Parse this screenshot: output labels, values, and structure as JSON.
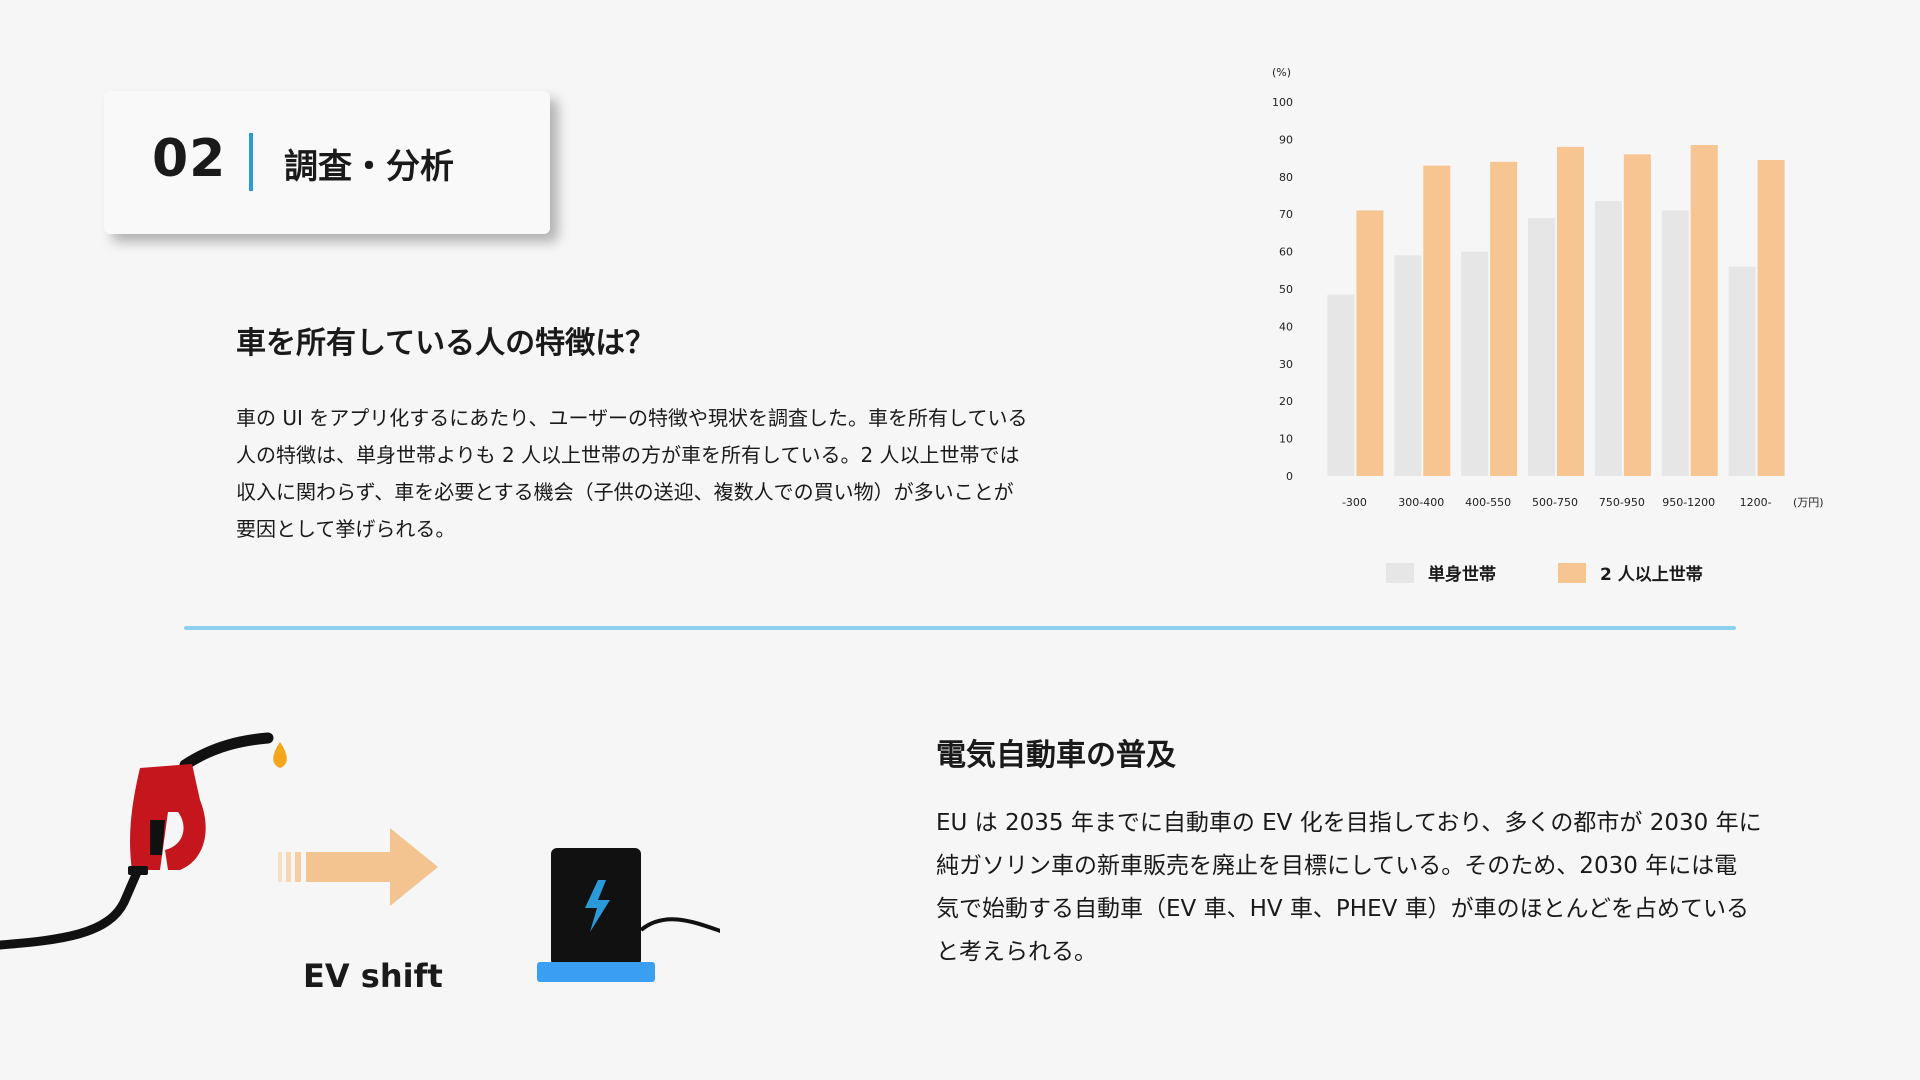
{
  "section": {
    "number": "02",
    "title": "調査・分析"
  },
  "owner": {
    "heading": "車を所有している人の特徴は？",
    "lines": [
      "車の UI をアプリ化するにあたり、ユーザーの特徴や現状を調査した。車を所有している",
      "人の特徴は、単身世帯よりも 2 人以上世帯の方が車を所有している。2 人以上世帯では",
      "収入に関わらず、車を必要とする機会（子供の送迎、複数人での買い物）が多いことが",
      "要因として挙げられる。"
    ]
  },
  "chart_data": {
    "type": "bar",
    "y_unit": "(%)",
    "x_unit": "(万円)",
    "ylim": [
      0,
      100
    ],
    "yticks": [
      0,
      10,
      20,
      30,
      40,
      50,
      60,
      70,
      80,
      90,
      100
    ],
    "categories": [
      "-300",
      "300-400",
      "400-550",
      "500-750",
      "750-950",
      "950-1200",
      "1200-"
    ],
    "series": [
      {
        "name": "単身世帯",
        "color": "#e6e6e6",
        "values": [
          48.5,
          59,
          60,
          69,
          73.5,
          71,
          56
        ]
      },
      {
        "name": "2 人以上世帯",
        "color": "#f6c591",
        "values": [
          71,
          83,
          84,
          88,
          86,
          88.5,
          84.5
        ]
      }
    ],
    "legend": "bottom",
    "grid": false
  },
  "ev": {
    "heading": "電気自動車の普及",
    "lines": [
      "EU は 2035 年までに自動車の EV 化を目指しており、多くの都市が 2030 年に",
      "純ガソリン車の新車販売を廃止を目標にしている。そのため、2030 年には電",
      "気で始動する自動車（EV 車、HV 車、PHEV 車）が車のほとんどを占めている",
      "と考えられる。"
    ],
    "shift_label": "EV shift",
    "icons": [
      "fuel-nozzle-icon",
      "arrow-right-icon",
      "ev-charger-icon",
      "lightning-icon",
      "plug-icon"
    ],
    "colors": {
      "accent": "#2a9bd8",
      "charger_base": "#3a9ff0",
      "nozzle": "#c4161c",
      "arrow": "#f3c48f"
    }
  }
}
